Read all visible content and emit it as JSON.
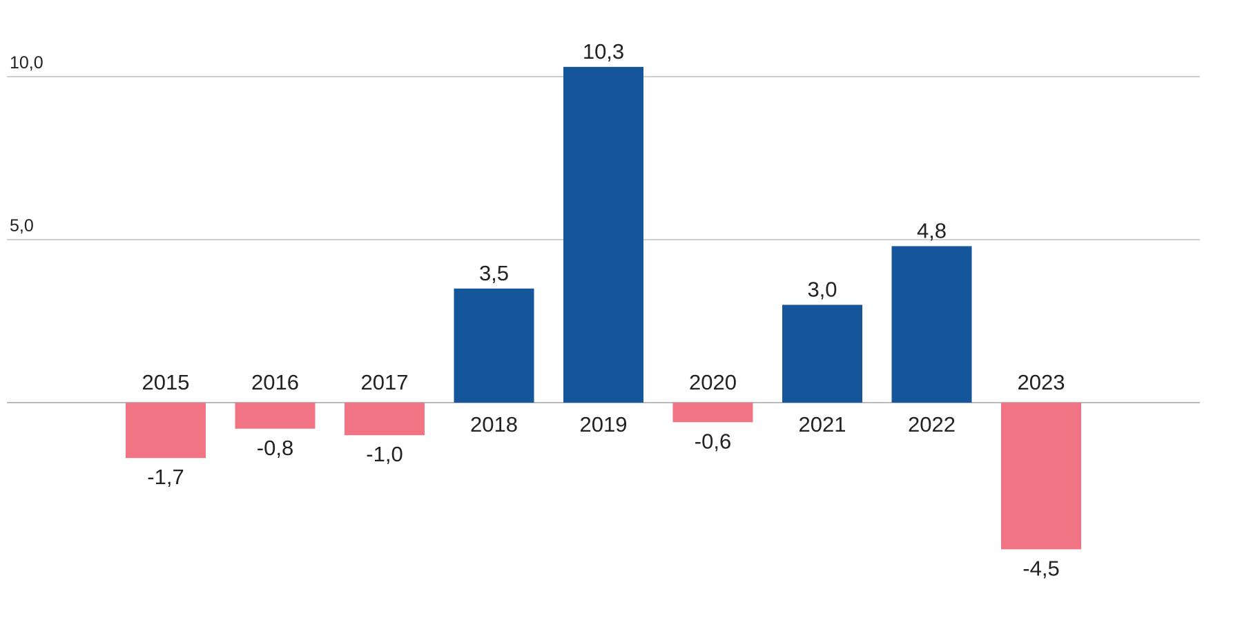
{
  "chart_data": {
    "type": "bar",
    "title": "",
    "xlabel": "",
    "ylabel": "",
    "categories": [
      "2015",
      "2016",
      "2017",
      "2018",
      "2019",
      "2020",
      "2021",
      "2022",
      "2023"
    ],
    "values": [
      -1.7,
      -0.8,
      -1.0,
      3.5,
      10.3,
      -0.6,
      3.0,
      4.8,
      -4.5
    ],
    "value_labels": [
      "-1,7",
      "-0,8",
      "-1,0",
      "3,5",
      "10,3",
      "-0,6",
      "3,0",
      "4,8",
      "-4,5"
    ],
    "y_ticks": [
      5.0,
      10.0
    ],
    "y_tick_labels": [
      "5,0",
      "10,0"
    ],
    "ylim": [
      -6.5,
      12
    ],
    "grid": true,
    "legend": "none",
    "colors": {
      "positive": "#15569b",
      "negative": "#f07483",
      "gridline": "#cfcfcf",
      "zero_line": "#b9b9b9",
      "text": "#222222"
    }
  }
}
